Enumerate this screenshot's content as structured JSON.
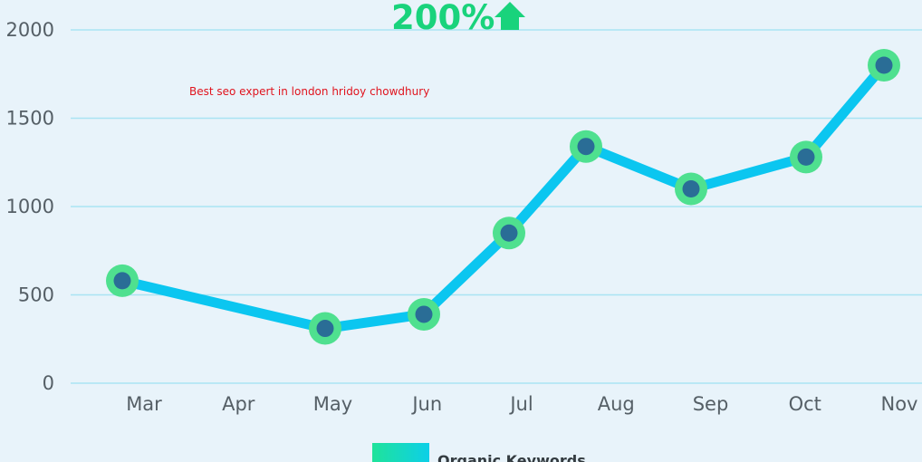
{
  "headline": {
    "text": "200%",
    "icon": "arrow-up-icon",
    "color": "#19d37c"
  },
  "watermark": {
    "text": "Best seo expert in london hridoy chowdhury",
    "color": "#e0141e"
  },
  "chart_data": {
    "type": "line",
    "categories": [
      "Mar",
      "Apr",
      "May",
      "Jun",
      "Jul",
      "Aug",
      "Sep",
      "Oct",
      "Nov"
    ],
    "x_tick_labels": [
      "Mar",
      "Apr",
      "May",
      "Jun",
      "Jul",
      "Aug",
      "Sep",
      "Oct",
      "Nov"
    ],
    "y_tick_labels": [
      "0",
      "500",
      "1000",
      "1500",
      "2000"
    ],
    "y_ticks": [
      0,
      500,
      1000,
      1500,
      2000
    ],
    "ylim": [
      0,
      2000
    ],
    "grid": true,
    "legend_position": "bottom",
    "series": [
      {
        "name": "Organic Keywords",
        "points": [
          {
            "category": "Mar",
            "value": 580
          },
          {
            "category": "May",
            "value": 310
          },
          {
            "category": "Jun",
            "value": 390
          },
          {
            "category": "Jul",
            "value": 850
          },
          {
            "category": "Aug",
            "value": 1340
          },
          {
            "category": "Sep",
            "value": 1100
          },
          {
            "category": "Oct",
            "value": 1280
          },
          {
            "category": "Nov",
            "value": 1800
          }
        ],
        "line_color": "#0bc6f0",
        "marker_ring_color": "#4fe08f",
        "marker_center_color": "#2a6d96"
      }
    ],
    "legend": [
      {
        "label": "Organic Keywords",
        "color_start": "#1fe39a",
        "color_end": "#0dcfe8"
      }
    ],
    "grid_color": "#a9e4f3",
    "axis_text_color": "#555f66"
  }
}
